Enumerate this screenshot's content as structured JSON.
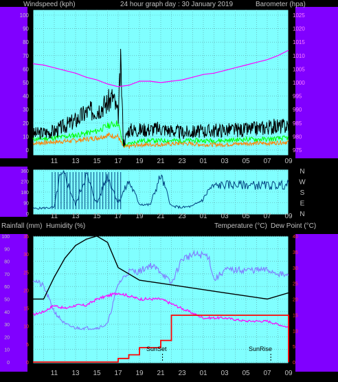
{
  "header": {
    "left": "Windspeed (kph)",
    "center": "24 hour graph day : 30 January 2019",
    "right": "Barometer (hpa)"
  },
  "labels": {
    "rainfall": "Rainfall (mm)",
    "humidity": "Humidity (%)",
    "temperature": "Temperature (°C)",
    "dewpoint": "Dew Point (°C)",
    "sunset": "SunSet",
    "sunrise": "SunRise"
  },
  "compass": [
    "N",
    "W",
    "S",
    "E",
    "N"
  ],
  "colors": {
    "panel_bg": "#80ffff",
    "frame": "#8000ff",
    "wind": "#000000",
    "gust": "#00ff00",
    "avg": "#ff8000",
    "baro": "#ff00ff",
    "dir": "#004080",
    "temp": "#000000",
    "dew": "#ff00ff",
    "humidity": "#8080ff",
    "rain": "#ff0000",
    "sun": "#000000"
  },
  "chart_data": [
    {
      "type": "line",
      "title": "24 hour graph day : 30 January 2019",
      "x_ticks": [
        "11",
        "13",
        "15",
        "17",
        "19",
        "21",
        "23",
        "01",
        "03",
        "05",
        "07",
        "09"
      ],
      "y_left": {
        "label": "Windspeed (kph)",
        "ylim": [
          0,
          100
        ],
        "ticks": [
          0,
          10,
          20,
          30,
          40,
          50,
          60,
          70,
          80,
          90,
          100
        ]
      },
      "y_right": {
        "label": "Barometer (hpa)",
        "ylim": [
          975,
          1025
        ],
        "ticks": [
          975,
          980,
          985,
          990,
          995,
          1000,
          1005,
          1010,
          1015,
          1020,
          1025
        ]
      },
      "series": [
        {
          "name": "Windspeed",
          "axis": "left",
          "x": [
            "09",
            "11",
            "12",
            "13",
            "14",
            "15",
            "16",
            "16:30",
            "17",
            "17:15",
            "17:30",
            "18",
            "19",
            "21",
            "23",
            "01",
            "03",
            "05",
            "07",
            "09"
          ],
          "y": [
            12,
            14,
            18,
            22,
            28,
            30,
            35,
            40,
            25,
            64,
            5,
            15,
            15,
            16,
            13,
            14,
            15,
            15,
            17,
            18
          ]
        },
        {
          "name": "Gust",
          "axis": "left",
          "x": [
            "09",
            "11",
            "13",
            "15",
            "16",
            "17",
            "17:30",
            "19",
            "21",
            "23",
            "01",
            "03",
            "05",
            "07",
            "09"
          ],
          "y": [
            8,
            9,
            11,
            14,
            18,
            20,
            3,
            7,
            7,
            7,
            7,
            7,
            8,
            8,
            9
          ]
        },
        {
          "name": "Average",
          "axis": "left",
          "x": [
            "09",
            "11",
            "13",
            "15",
            "16",
            "17",
            "17:30",
            "19",
            "21",
            "23",
            "01",
            "03",
            "05",
            "07",
            "09"
          ],
          "y": [
            5,
            6,
            7,
            9,
            11,
            10,
            2,
            4,
            4,
            5,
            4,
            4,
            5,
            5,
            6
          ]
        },
        {
          "name": "Barometer",
          "axis": "right",
          "x": [
            "09",
            "10",
            "11",
            "12",
            "13",
            "14",
            "15",
            "16",
            "17",
            "18",
            "19",
            "20",
            "21",
            "22",
            "23",
            "00",
            "01",
            "02",
            "03",
            "04",
            "05",
            "06",
            "07",
            "08",
            "09"
          ],
          "y": [
            1007,
            1006.5,
            1005.5,
            1004.5,
            1003.5,
            1002,
            1001,
            999.5,
            998.5,
            999,
            1000.5,
            1000.5,
            1000,
            1000.5,
            1001,
            1002,
            1003,
            1003.5,
            1004.5,
            1005.5,
            1006.5,
            1007.5,
            1008.5,
            1010,
            1012
          ]
        }
      ]
    },
    {
      "type": "line",
      "x_ticks": [
        "11",
        "13",
        "15",
        "17",
        "19",
        "21",
        "23",
        "01",
        "03",
        "05",
        "07",
        "09"
      ],
      "y_left": {
        "ylim": [
          0,
          360
        ],
        "ticks": [
          0,
          90,
          180,
          270,
          360
        ]
      },
      "y_right": {
        "labels": [
          "N",
          "W",
          "S",
          "E",
          "N"
        ]
      },
      "series": [
        {
          "name": "Wind Direction",
          "x": [
            "09",
            "10",
            "11",
            "11:30",
            "12",
            "13",
            "14",
            "15",
            "16",
            "17",
            "18",
            "19",
            "20",
            "21",
            "22",
            "23",
            "00",
            "01",
            "01:30",
            "02",
            "03",
            "05",
            "07",
            "09"
          ],
          "y": [
            40,
            45,
            50,
            300,
            320,
            70,
            330,
            80,
            320,
            90,
            270,
            80,
            70,
            320,
            60,
            50,
            60,
            120,
            200,
            230,
            240,
            240,
            235,
            240
          ]
        }
      ]
    },
    {
      "type": "line",
      "x_ticks": [
        "11",
        "13",
        "15",
        "17",
        "19",
        "21",
        "23",
        "01",
        "03",
        "05",
        "07",
        "09"
      ],
      "y_left": {
        "label": "Humidity (%)",
        "ylim": [
          0,
          100
        ],
        "ticks": [
          0,
          10,
          20,
          30,
          40,
          50,
          60,
          70,
          80,
          90,
          100
        ]
      },
      "y_left_inner": {
        "label": "Rainfall (mm)",
        "ylim": [
          0,
          35
        ],
        "ticks": [
          0,
          5,
          10,
          15,
          20,
          25,
          30,
          35
        ]
      },
      "y_right": {
        "label": "Temperature (°C)",
        "ylim": [
          0,
          40
        ],
        "ticks": [
          0,
          5,
          10,
          15,
          20,
          25,
          30,
          35,
          40
        ]
      },
      "series": [
        {
          "name": "Temperature",
          "axis": "right",
          "x": [
            "09",
            "10",
            "11",
            "12",
            "13",
            "14",
            "15",
            "16",
            "17",
            "18",
            "19",
            "21",
            "23",
            "01",
            "03",
            "05",
            "07",
            "09"
          ],
          "y": [
            20,
            20,
            27,
            33,
            37,
            39,
            40,
            38,
            30,
            28,
            26,
            25,
            24,
            23,
            22,
            21,
            20,
            22
          ]
        },
        {
          "name": "Dew Point",
          "axis": "right",
          "x": [
            "09",
            "10",
            "11",
            "12",
            "13",
            "14",
            "15",
            "16",
            "17",
            "18",
            "19",
            "21",
            "23",
            "01",
            "03",
            "05",
            "07",
            "09"
          ],
          "y": [
            15,
            16,
            18,
            17,
            18,
            18,
            20,
            21,
            22,
            21,
            20,
            20,
            17,
            14,
            14,
            13,
            13,
            11
          ]
        },
        {
          "name": "Humidity",
          "axis": "left",
          "x": [
            "09",
            "10",
            "11",
            "12",
            "13",
            "14",
            "15",
            "16",
            "17",
            "18",
            "19",
            "20",
            "21",
            "22",
            "23",
            "00",
            "01",
            "01:30",
            "02",
            "03",
            "05",
            "07",
            "09"
          ],
          "y": [
            66,
            60,
            40,
            30,
            27,
            27,
            27,
            30,
            62,
            72,
            72,
            77,
            72,
            62,
            82,
            85,
            85,
            84,
            65,
            73,
            73,
            73,
            68
          ]
        },
        {
          "name": "Rainfall",
          "axis": "left_inner",
          "x": [
            "09",
            "16",
            "17",
            "18",
            "19",
            "20",
            "21",
            "22",
            "23",
            "01",
            "03",
            "05",
            "07",
            "08:50",
            "09"
          ],
          "y": [
            0,
            0,
            1,
            2,
            4,
            4,
            6,
            13,
            13,
            13,
            13,
            13,
            13,
            13,
            0
          ]
        }
      ]
    }
  ]
}
